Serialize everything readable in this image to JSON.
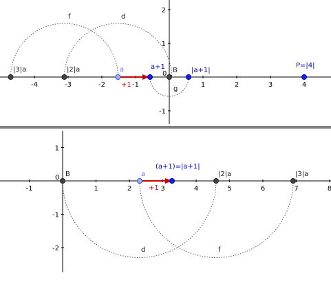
{
  "colors": {
    "axis": "#000000",
    "arc": "#606060",
    "point_dark": "#444444",
    "point_blue": "#1a1aff",
    "point_light": "#7f9fff",
    "label_blue": "#0000cc",
    "label_light": "#6f6fff",
    "vector": "#cc0000",
    "divider": "#808080"
  },
  "top": {
    "x_ticks": [
      "-4",
      "-3",
      "-2",
      "-1",
      "1",
      "2",
      "3",
      "4"
    ],
    "x_tick_values": [
      -4,
      -3,
      -2,
      -1,
      1,
      2,
      3,
      4
    ],
    "y_ticks": [
      "2",
      "1",
      "-1"
    ],
    "y_tick_values": [
      2,
      1,
      -1
    ],
    "origin_label": "0",
    "points": {
      "three_a": {
        "label": "|3|a",
        "x": -4.68
      },
      "two_a": {
        "label": "|2|a",
        "x": -3.12
      },
      "a": {
        "label": "a",
        "x": -1.56
      },
      "a_plus_1": {
        "label": "a+1",
        "x": -0.56
      },
      "B": {
        "label": "B",
        "x": 0
      },
      "abs_a_plus_1": {
        "label": "|a+1|",
        "x": 0.56
      },
      "P": {
        "label": "P=|4|",
        "x": 4
      }
    },
    "vector_label": "+1",
    "circle_labels": {
      "f": "f",
      "d": "d",
      "g": "g"
    }
  },
  "bottom": {
    "x_ticks": [
      "-1",
      "1",
      "2",
      "3",
      "4",
      "5",
      "6",
      "7",
      "8"
    ],
    "x_tick_values": [
      -1,
      1,
      2,
      3,
      4,
      5,
      6,
      7,
      8
    ],
    "y_ticks": [
      "1",
      "-1",
      "-2"
    ],
    "y_tick_values": [
      1,
      -1,
      -2
    ],
    "origin_label": "0",
    "points": {
      "B": {
        "label": "B",
        "x": 0
      },
      "a": {
        "label": "a",
        "x": 2.3
      },
      "a_plus_1": {
        "label": "(a+1)=|a+1|",
        "x": 3.3
      },
      "two_a": {
        "label": "|2|a",
        "x": 4.6
      },
      "three_a": {
        "label": "|3|a",
        "x": 6.9
      }
    },
    "vector_label": "+1",
    "circle_labels": {
      "d": "d",
      "f": "f"
    }
  }
}
